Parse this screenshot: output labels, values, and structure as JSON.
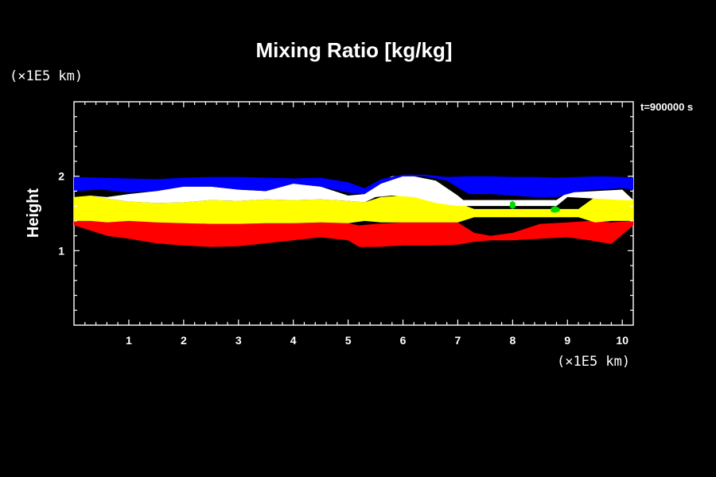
{
  "chart_data": {
    "type": "area",
    "title": "Mixing Ratio [kg/kg]",
    "xlabel": "",
    "ylabel": "Height",
    "x_unit": "(×1E5 km)",
    "y_unit": "(×1E5 km)",
    "time_label": "t=900000 s",
    "xlim": [
      0,
      10.2
    ],
    "ylim": [
      0,
      3
    ],
    "x_ticks": [
      1,
      2,
      3,
      4,
      5,
      6,
      7,
      8,
      9,
      10
    ],
    "y_ticks": [
      1,
      2
    ],
    "grid": false,
    "background": "#000000",
    "series": [
      {
        "color": "#ff0000",
        "x": [
          0,
          0.3,
          0.6,
          1.0,
          1.5,
          2.0,
          2.5,
          3.0,
          3.5,
          4.0,
          4.5,
          5.0,
          5.2,
          5.5,
          6.0,
          6.5,
          7.0,
          7.3,
          7.6,
          8.0,
          8.5,
          9.0,
          9.4,
          9.8,
          10.2
        ],
        "upper": [
          1.4,
          1.4,
          1.38,
          1.4,
          1.38,
          1.37,
          1.36,
          1.36,
          1.37,
          1.37,
          1.38,
          1.37,
          1.34,
          1.36,
          1.38,
          1.38,
          1.38,
          1.24,
          1.2,
          1.24,
          1.36,
          1.38,
          1.4,
          1.38,
          1.4
        ],
        "lower": [
          1.34,
          1.27,
          1.2,
          1.16,
          1.1,
          1.07,
          1.05,
          1.06,
          1.1,
          1.14,
          1.18,
          1.14,
          1.05,
          1.05,
          1.07,
          1.07,
          1.08,
          1.12,
          1.14,
          1.14,
          1.16,
          1.18,
          1.14,
          1.09,
          1.34
        ]
      },
      {
        "color": "#ffff00",
        "x": [
          0,
          0.3,
          0.6,
          1.0,
          1.5,
          2.0,
          2.5,
          3.0,
          3.5,
          4.0,
          4.5,
          5.0,
          5.3,
          5.6,
          6.0,
          6.5,
          7.0,
          7.3,
          9.2,
          9.5,
          9.8,
          10.2
        ],
        "upper": [
          1.72,
          1.74,
          1.7,
          1.66,
          1.64,
          1.65,
          1.68,
          1.67,
          1.69,
          1.68,
          1.69,
          1.67,
          1.65,
          1.72,
          1.74,
          1.72,
          1.64,
          1.56,
          1.56,
          1.72,
          1.7,
          1.68
        ],
        "lower": [
          1.4,
          1.4,
          1.38,
          1.4,
          1.38,
          1.37,
          1.36,
          1.36,
          1.37,
          1.37,
          1.38,
          1.37,
          1.4,
          1.38,
          1.38,
          1.38,
          1.38,
          1.45,
          1.45,
          1.38,
          1.4,
          1.4
        ]
      },
      {
        "color": "#ffffff",
        "x": [
          0.0,
          0.3,
          0.6,
          1.0,
          1.5,
          2.0,
          2.5,
          3.0,
          3.5,
          4.0,
          4.5,
          5.0,
          5.3,
          5.5,
          5.8,
          6.2,
          6.6,
          7.0,
          7.1,
          8.8,
          9.0,
          9.5,
          10.0,
          10.2
        ],
        "upper": [
          1.72,
          1.74,
          1.72,
          1.76,
          1.8,
          1.86,
          1.86,
          1.82,
          1.8,
          1.9,
          1.86,
          1.74,
          1.76,
          1.9,
          2.0,
          2.0,
          1.94,
          1.74,
          1.68,
          1.68,
          1.78,
          1.8,
          1.82,
          1.68
        ],
        "lower": [
          1.72,
          1.74,
          1.7,
          1.66,
          1.64,
          1.65,
          1.68,
          1.67,
          1.69,
          1.68,
          1.69,
          1.67,
          1.65,
          1.72,
          1.74,
          1.72,
          1.64,
          1.6,
          1.6,
          1.6,
          1.72,
          1.7,
          1.68,
          1.68
        ]
      },
      {
        "color": "#0000ff",
        "x": [
          0.0,
          0.5,
          1.0,
          1.5,
          2.0,
          2.5,
          3.0,
          3.5,
          4.0,
          4.5,
          5.0,
          5.3,
          5.6,
          6.0,
          6.4,
          6.8,
          7.2,
          7.6,
          8.0,
          8.4,
          8.8,
          9.2,
          9.6,
          10.0,
          10.2
        ],
        "upper": [
          1.99,
          1.98,
          1.97,
          1.96,
          1.98,
          1.99,
          1.99,
          1.98,
          1.97,
          1.98,
          1.92,
          1.84,
          1.96,
          2.02,
          2.02,
          1.99,
          2.0,
          2.0,
          1.99,
          1.99,
          1.98,
          1.99,
          2.0,
          1.99,
          1.98
        ],
        "lower": [
          1.8,
          1.82,
          1.78,
          1.8,
          1.86,
          1.86,
          1.82,
          1.8,
          1.9,
          1.86,
          1.78,
          1.76,
          1.9,
          2.0,
          2.0,
          1.94,
          1.76,
          1.76,
          1.74,
          1.72,
          1.72,
          1.8,
          1.82,
          1.84,
          1.82
        ]
      },
      {
        "color": "#00dd00",
        "x": [
          7.95,
          8.0,
          8.05
        ],
        "upper": [
          1.65,
          1.67,
          1.64
        ],
        "lower": [
          1.58,
          1.56,
          1.58
        ]
      },
      {
        "color": "#00dd00",
        "x": [
          8.7,
          8.78,
          8.86
        ],
        "upper": [
          1.58,
          1.6,
          1.57
        ],
        "lower": [
          1.52,
          1.51,
          1.53
        ]
      }
    ]
  }
}
